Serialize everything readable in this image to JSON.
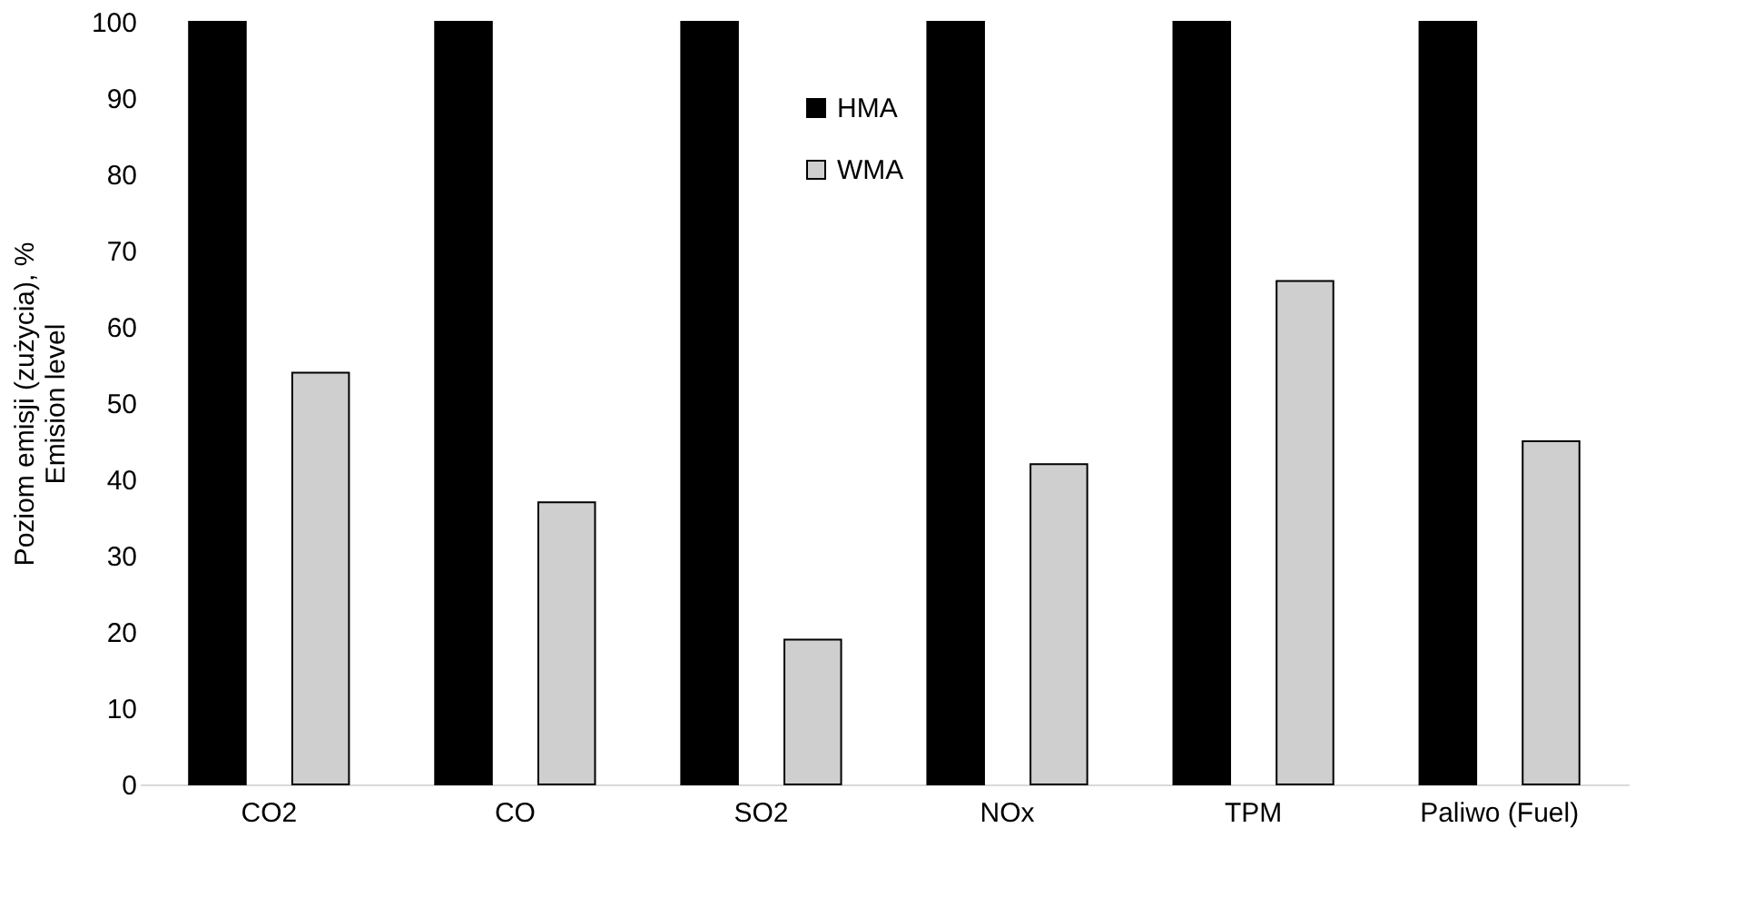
{
  "chart_data": {
    "type": "bar",
    "ylabel": "Poziom emisji (zużycia), %\nEmision level",
    "categories": [
      "CO2",
      "CO",
      "SO2",
      "NOx",
      "TPM",
      "Paliwo (Fuel)"
    ],
    "series": [
      {
        "name": "HMA",
        "color": "#000000",
        "values": [
          100,
          100,
          100,
          100,
          100,
          100
        ]
      },
      {
        "name": "WMA",
        "color": "#cfcfcf",
        "values": [
          54,
          37,
          19,
          42,
          66,
          45
        ]
      }
    ],
    "ylim": [
      0,
      100
    ],
    "yticks": [
      0,
      10,
      20,
      30,
      40,
      50,
      60,
      70,
      80,
      90,
      100
    ],
    "grid": false,
    "legend": "top"
  }
}
